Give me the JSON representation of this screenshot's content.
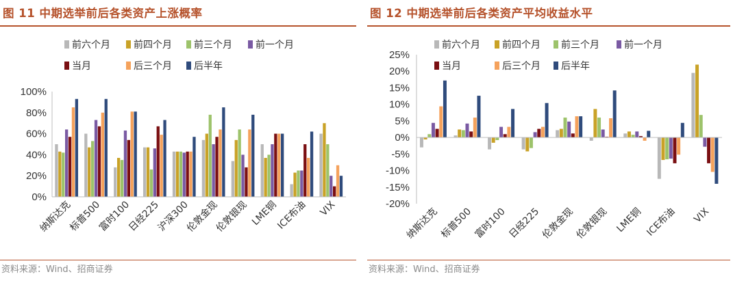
{
  "source_text": "资料来源：Wind、招商证券",
  "colors": {
    "title": "#b5512a",
    "series": [
      "#b8b8b8",
      "#c9a227",
      "#9dc36b",
      "#7a5aa3",
      "#7a0f12",
      "#f5a25c",
      "#2f4b7c"
    ]
  },
  "chart_data": [
    {
      "type": "bar",
      "title": "图 11 中期选举前后各类资产上涨概率",
      "xlabel": "",
      "ylabel": "",
      "ylim": [
        0,
        1.0
      ],
      "yticks": [
        "0%",
        "20%",
        "40%",
        "60%",
        "80%",
        "100%"
      ],
      "grid": false,
      "legend": "top",
      "categories": [
        "纳斯达克",
        "标普500",
        "富时100",
        "日经225",
        "沪深300",
        "伦敦金现",
        "伦敦银现",
        "LME铜",
        "ICE布油",
        "VIX"
      ],
      "series": [
        {
          "name": "前六个月",
          "values": [
            0.5,
            0.6,
            0.28,
            0.47,
            0.43,
            0.54,
            0.34,
            0.5,
            0.12,
            0.6
          ]
        },
        {
          "name": "前四个月",
          "values": [
            0.43,
            0.47,
            0.37,
            0.47,
            0.43,
            0.6,
            0.54,
            0.37,
            0.23,
            0.7
          ]
        },
        {
          "name": "前三个月",
          "values": [
            0.42,
            0.53,
            0.35,
            0.26,
            0.43,
            0.78,
            0.64,
            0.4,
            0.25,
            0.5
          ]
        },
        {
          "name": "前一个月",
          "values": [
            0.64,
            0.73,
            0.63,
            0.46,
            0.42,
            0.5,
            0.4,
            0.5,
            0.25,
            0.2
          ]
        },
        {
          "name": "当月",
          "values": [
            0.57,
            0.67,
            0.54,
            0.67,
            0.43,
            0.57,
            0.28,
            0.6,
            0.5,
            0.1
          ]
        },
        {
          "name": "后三个月",
          "values": [
            0.85,
            0.8,
            0.81,
            0.59,
            0.43,
            0.64,
            0.64,
            0.6,
            0.37,
            0.3
          ]
        },
        {
          "name": "后半年",
          "values": [
            0.93,
            0.93,
            0.81,
            0.73,
            0.57,
            0.85,
            0.78,
            0.6,
            0.62,
            0.2
          ]
        }
      ]
    },
    {
      "type": "bar",
      "title": "图 12 中期选举前后各类资产平均收益水平",
      "xlabel": "",
      "ylabel": "",
      "ylim": [
        -0.2,
        0.25
      ],
      "yticks": [
        "-20%",
        "-15%",
        "-10%",
        "-5%",
        "0%",
        "5%",
        "10%",
        "15%",
        "20%",
        "25%"
      ],
      "grid": false,
      "legend": "top",
      "categories": [
        "纳斯达克",
        "标普500",
        "富时100",
        "日经225",
        "伦敦金现",
        "伦敦银现",
        "LME铜",
        "ICE布油",
        "VIX"
      ],
      "series": [
        {
          "name": "前六个月",
          "values": [
            -0.03,
            0.006,
            -0.036,
            -0.036,
            0.022,
            -0.01,
            0.012,
            -0.125,
            0.195
          ]
        },
        {
          "name": "前四个月",
          "values": [
            -0.006,
            0.024,
            -0.016,
            -0.042,
            0.026,
            0.086,
            0.018,
            -0.068,
            0.22
          ]
        },
        {
          "name": "前三个月",
          "values": [
            0.01,
            0.022,
            -0.008,
            -0.032,
            0.06,
            0.06,
            0.008,
            -0.066,
            0.068
          ]
        },
        {
          "name": "前一个月",
          "values": [
            0.044,
            0.042,
            0.032,
            0.016,
            0.048,
            0.024,
            0.018,
            -0.064,
            -0.028
          ]
        },
        {
          "name": "当月",
          "values": [
            0.026,
            0.018,
            0.01,
            0.026,
            0.012,
            0.002,
            0.004,
            -0.078,
            -0.078
          ]
        },
        {
          "name": "后三个月",
          "values": [
            0.094,
            0.06,
            0.032,
            0.032,
            0.064,
            0.058,
            -0.01,
            -0.052,
            -0.104
          ]
        },
        {
          "name": "后半年",
          "values": [
            0.172,
            0.126,
            0.086,
            0.104,
            0.064,
            0.142,
            0.02,
            0.044,
            -0.14
          ]
        }
      ]
    }
  ]
}
